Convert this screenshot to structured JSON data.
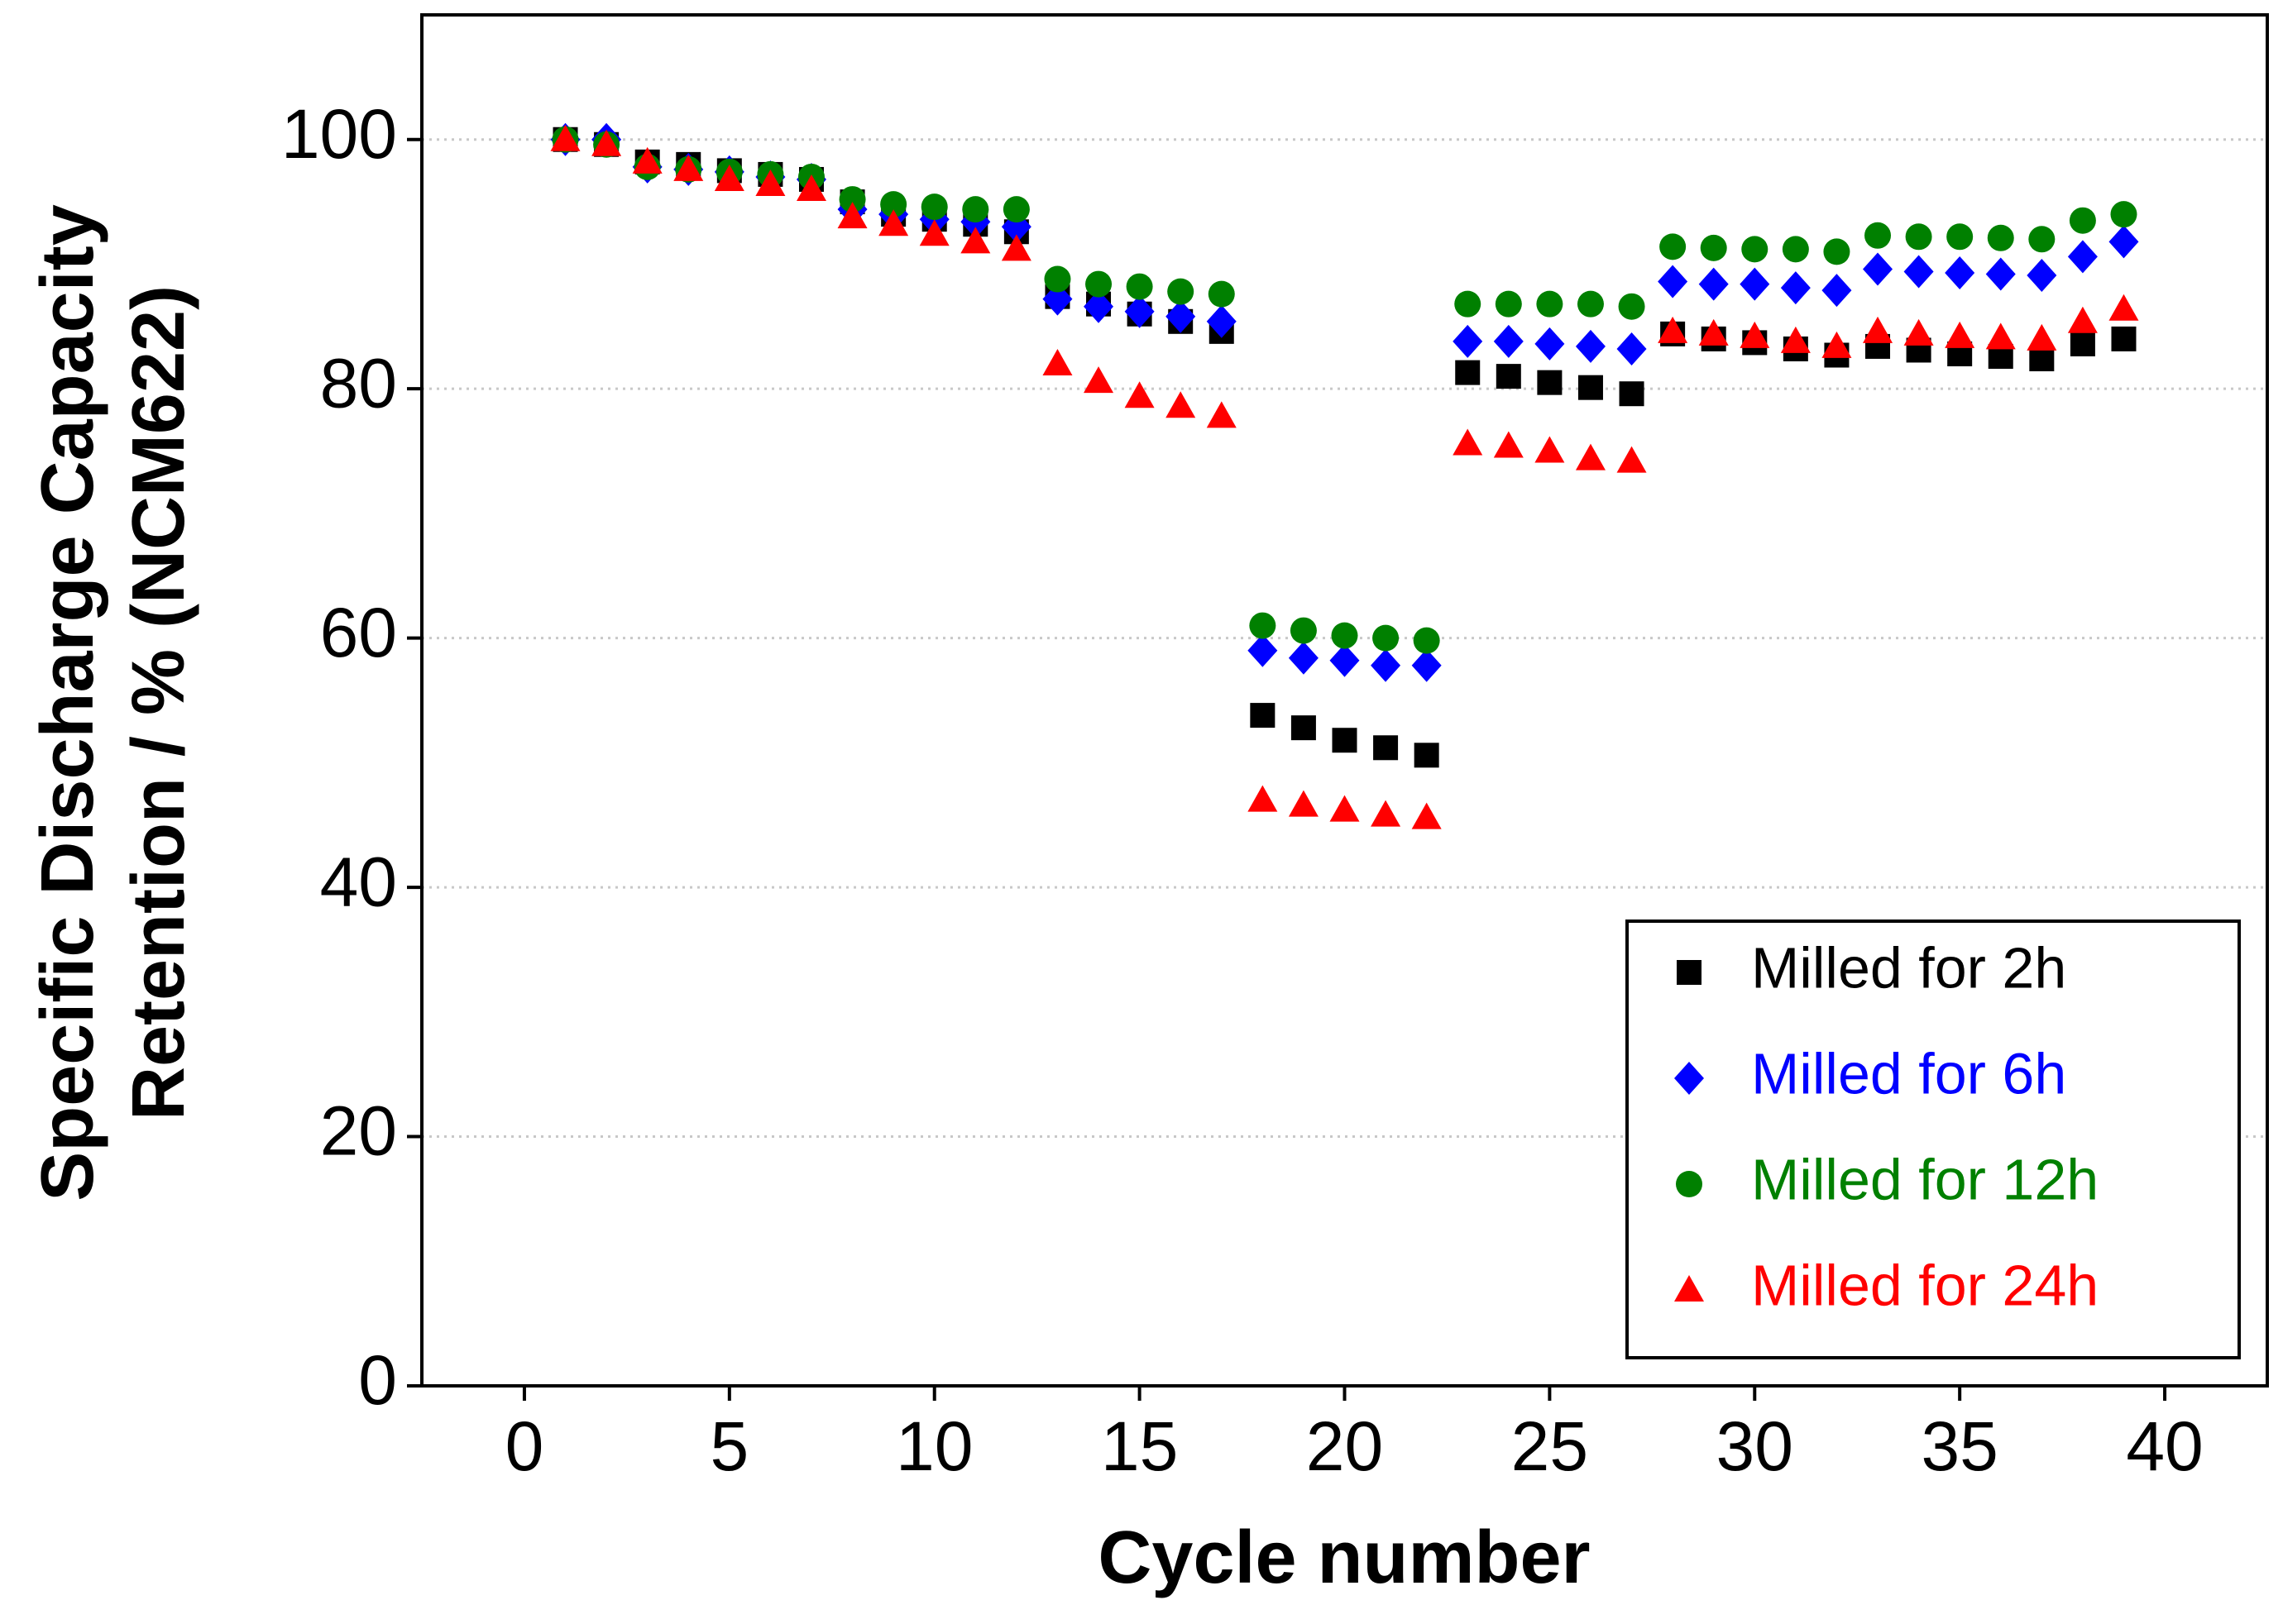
{
  "chart_data": {
    "type": "scatter",
    "xlabel": "Cycle number",
    "ylabel": [
      "Specific Discharge Capacity",
      "Retention / % (NCM622)"
    ],
    "x": [
      1,
      2,
      3,
      4,
      5,
      6,
      7,
      8,
      9,
      10,
      11,
      12,
      13,
      14,
      15,
      16,
      17,
      18,
      19,
      20,
      21,
      22,
      23,
      24,
      25,
      26,
      27,
      28,
      29,
      30,
      31,
      32,
      33,
      34,
      35,
      36,
      37,
      38,
      39
    ],
    "series": [
      {
        "name": "Milled for 2h",
        "color": "#000000",
        "marker": "square",
        "values": [
          100,
          99.6,
          98.2,
          98,
          97.5,
          97.2,
          96.8,
          95,
          94,
          93.6,
          93.2,
          92.6,
          87.4,
          86.8,
          86,
          85.4,
          84.6,
          53.8,
          52.8,
          51.8,
          51.2,
          50.6,
          81.3,
          81,
          80.5,
          80.1,
          79.6,
          84.4,
          84,
          83.7,
          83.2,
          82.7,
          83.4,
          83.1,
          82.8,
          82.6,
          82.4,
          83.6,
          84
        ]
      },
      {
        "name": "Milled for 6h",
        "color": "#0000ff",
        "marker": "diamond",
        "values": [
          100,
          100,
          97.8,
          97.6,
          97.4,
          97,
          96.8,
          94.4,
          94,
          93.6,
          93.4,
          93,
          87.2,
          86.6,
          86.2,
          85.8,
          85.4,
          59,
          58.4,
          58.2,
          57.8,
          57.8,
          83.8,
          83.8,
          83.6,
          83.4,
          83.2,
          88.6,
          88.4,
          88.4,
          88.1,
          87.9,
          89.6,
          89.4,
          89.3,
          89.2,
          89.1,
          90.6,
          91.8
        ]
      },
      {
        "name": "Milled for 12h",
        "color": "#008000",
        "marker": "circle",
        "values": [
          100,
          99.6,
          97.8,
          97.6,
          97.4,
          97.2,
          97,
          95.2,
          94.8,
          94.6,
          94.4,
          94.4,
          88.8,
          88.4,
          88.2,
          87.8,
          87.6,
          61,
          60.6,
          60.2,
          60,
          59.8,
          86.8,
          86.8,
          86.8,
          86.8,
          86.6,
          91.4,
          91.3,
          91.2,
          91.2,
          91,
          92.3,
          92.2,
          92.2,
          92.1,
          92,
          93.5,
          94
        ]
      },
      {
        "name": "Milled for 24h",
        "color": "#ff0000",
        "marker": "triangle",
        "values": [
          100,
          99.6,
          98.2,
          97.6,
          96.8,
          96.4,
          96,
          93.8,
          93.2,
          92.4,
          91.8,
          91.2,
          82,
          80.6,
          79.4,
          78.6,
          77.8,
          47,
          46.6,
          46.2,
          45.8,
          45.6,
          75.6,
          75.4,
          75,
          74.4,
          74.2,
          84.6,
          84.4,
          84.2,
          83.8,
          83.4,
          84.6,
          84.4,
          84.2,
          84.1,
          84,
          85.4,
          86.4
        ]
      }
    ],
    "xlim": [
      -2.5,
      42.5
    ],
    "xticks": [
      0,
      5,
      10,
      15,
      20,
      25,
      30,
      35,
      40
    ],
    "ylim": [
      0,
      110
    ],
    "yticks": [
      0,
      20,
      40,
      60,
      80,
      100
    ],
    "grid": true,
    "legend": "lower right"
  }
}
